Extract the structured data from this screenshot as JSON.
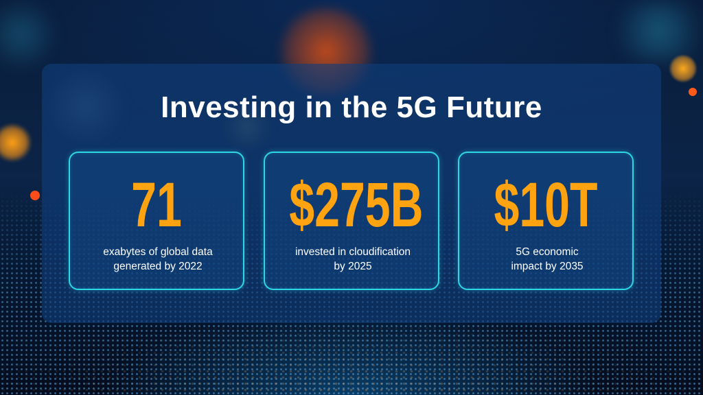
{
  "title": "Investing in the 5G Future",
  "colors": {
    "accent_value": "#ffa310",
    "card_border": "#2fd6e4",
    "title_text": "#ffffff",
    "panel": "#103e7a"
  },
  "stats": [
    {
      "value": "71",
      "caption_lines": [
        "exabytes of global data",
        "generated by 2022"
      ]
    },
    {
      "value": "$275B",
      "caption_lines": [
        "invested in cloudification",
        "by 2025"
      ]
    },
    {
      "value": "$10T",
      "caption_lines": [
        "5G economic",
        "impact by 2035"
      ]
    }
  ]
}
